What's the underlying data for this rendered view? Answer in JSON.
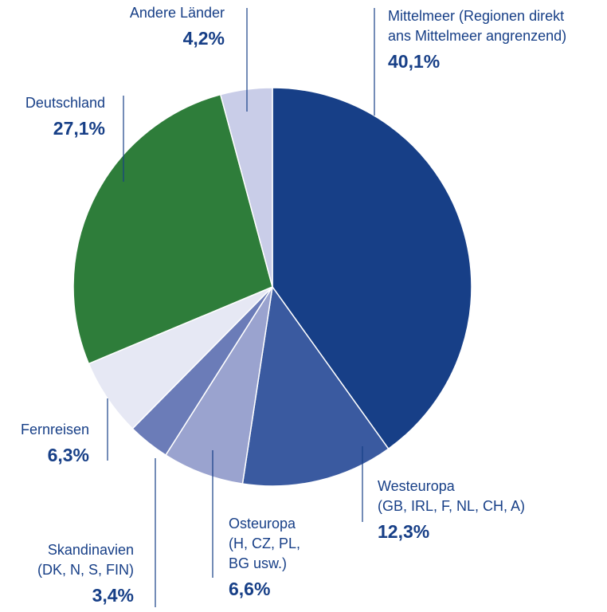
{
  "chart_data": {
    "type": "pie",
    "categories": [
      "Mittelmeer (Regionen direkt\nans Mittelmeer angrenzend)",
      "Westeuropa\n(GB, IRL, F, NL, CH, A)",
      "Osteuropa\n(H, CZ, PL,\nBG usw.)",
      "Skandinavien\n(DK, N, S, FIN)",
      "Fernreisen",
      "Deutschland",
      "Andere Länder"
    ],
    "values": [
      40.1,
      12.3,
      6.6,
      3.4,
      6.3,
      27.1,
      4.2
    ],
    "value_labels": [
      "40,1%",
      "12,3%",
      "6,6%",
      "3,4%",
      "6,3%",
      "27,1%",
      "4,2%"
    ],
    "colors": [
      "#173f87",
      "#3a5aa0",
      "#9aa3cf",
      "#6b7cb8",
      "#e6e8f4",
      "#2e7d3a",
      "#c9cde8"
    ]
  }
}
